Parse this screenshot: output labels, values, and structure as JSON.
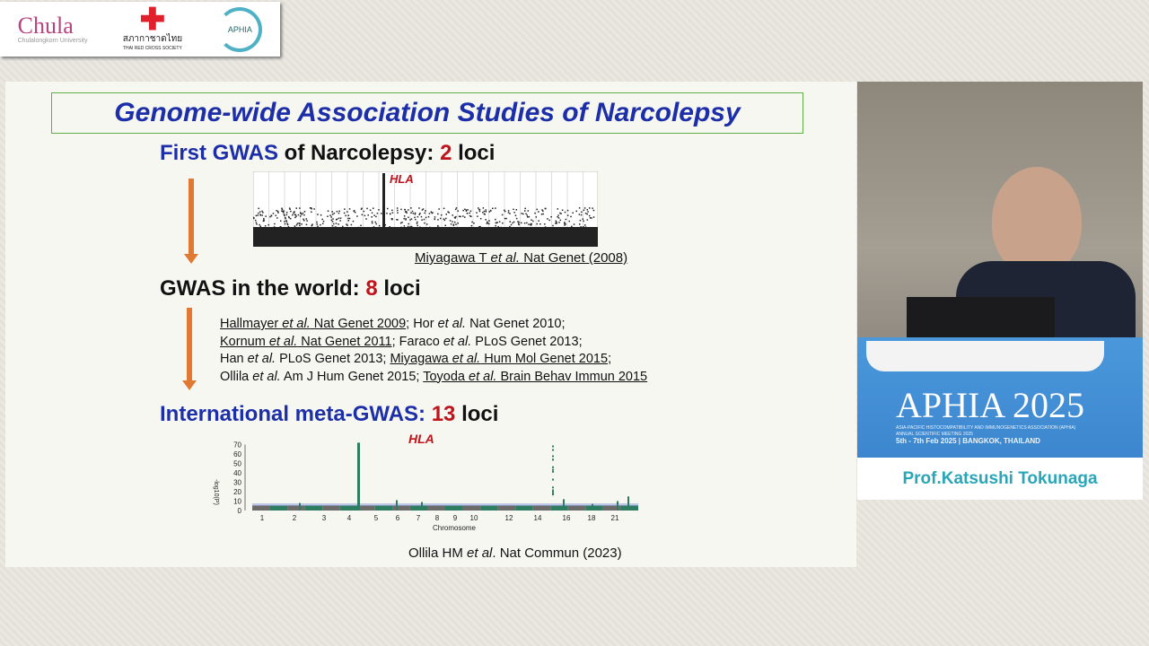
{
  "logos": {
    "chula": "Chula",
    "chula_sub": "Chulalongkorn University",
    "redcross": "สภากาชาดไทย",
    "redcross_sub": "THAI RED CROSS SOCIETY",
    "aphia": "APHIA"
  },
  "slide": {
    "title": "Genome-wide Association Studies of Narcolepsy",
    "first": {
      "a": "First GWAS",
      "b": " of Narcolepsy",
      "c": ": ",
      "n": "2",
      "d": " loci"
    },
    "hla_label": "HLA",
    "cite1": {
      "a": "Miyagawa T ",
      "b": "et al.",
      "c": " Nat Genet (2008)"
    },
    "world": {
      "a": "GWAS in the world: ",
      "n": "8",
      "d": " loci"
    },
    "refs": [
      [
        {
          "t": "Hallmayer ",
          "u": true
        },
        {
          "t": "et al.",
          "i": true,
          "u": true
        },
        {
          "t": " Nat Genet 2009",
          "u": true
        },
        {
          "t": "; Hor "
        },
        {
          "t": "et al.",
          "i": true
        },
        {
          "t": " Nat Genet 2010;"
        }
      ],
      [
        {
          "t": "Kornum ",
          "u": true
        },
        {
          "t": "et al.",
          "i": true,
          "u": true
        },
        {
          "t": " Nat Genet 2011",
          "u": true
        },
        {
          "t": "; Faraco "
        },
        {
          "t": "et al.",
          "i": true
        },
        {
          "t": " PLoS Genet 2013;"
        }
      ],
      [
        {
          "t": "Han "
        },
        {
          "t": "et al.",
          "i": true
        },
        {
          "t": " PLoS Genet 2013; "
        },
        {
          "t": "Miyagawa ",
          "u": true
        },
        {
          "t": "et al.",
          "i": true,
          "u": true
        },
        {
          "t": " Hum Mol Genet 2015",
          "u": true
        },
        {
          "t": ";"
        }
      ],
      [
        {
          "t": "Ollila "
        },
        {
          "t": "et al.",
          "i": true
        },
        {
          "t": " Am J Hum Genet 2015; "
        },
        {
          "t": "Toyoda ",
          "u": true
        },
        {
          "t": "et al.",
          "i": true,
          "u": true
        },
        {
          "t": " Brain Behav Immun 2015",
          "u": true
        }
      ]
    ],
    "meta": {
      "a": "International meta-GWAS: ",
      "n": "13",
      "d": " loci"
    },
    "plot2": {
      "ylabel": "-log10(P)",
      "yticks": [
        "70",
        "60",
        "50",
        "40",
        "30",
        "20",
        "10",
        "0"
      ],
      "xticks": [
        "1",
        "2",
        "3",
        "4",
        "5",
        "6",
        "7",
        "8",
        "9",
        "10",
        "12",
        "14",
        "16",
        "18",
        "21"
      ],
      "xlabel": "Chromosome"
    },
    "cite2": {
      "a": "Ollila HM ",
      "b": "et al",
      "c": ". Nat Commun (2023)"
    }
  },
  "video": {
    "banner_title": "APHIA 2025",
    "banner_sub": "ASIA-PACIFIC HISTOCOMPATIBILITY AND IMMUNOGENETICS ASSOCIATION (APHIA)",
    "banner_sub2": "ANNUAL SCIENTIFIC MEETING 2025",
    "banner_date": "5th - 7th Feb 2025 | BANGKOK, THAILAND"
  },
  "speaker": "Prof.Katsushi Tokunaga",
  "colors": {
    "title_blue": "#1d2fa8",
    "number_red": "#c0141c",
    "arrow": "#e07a33",
    "name": "#2aa6b8"
  }
}
